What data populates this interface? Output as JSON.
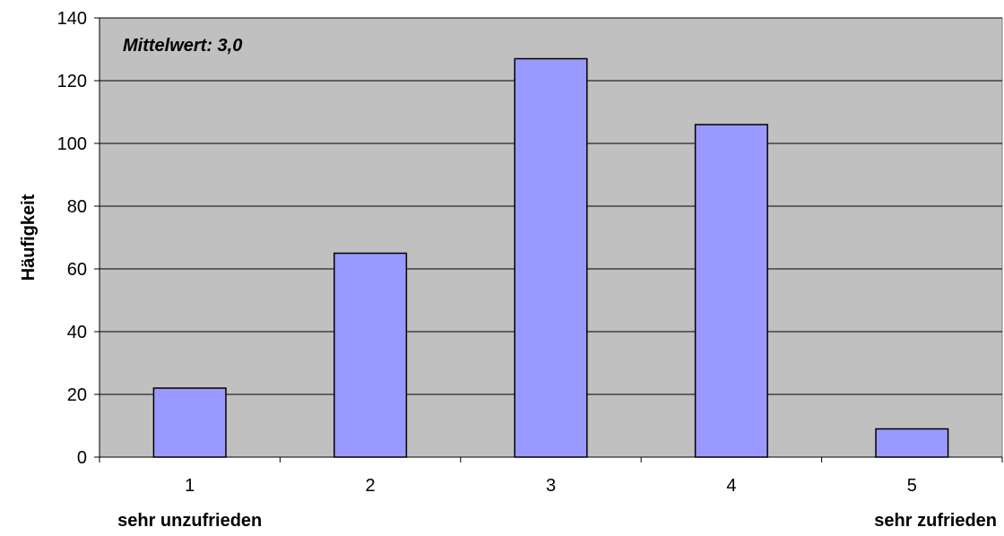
{
  "chart_data": {
    "type": "bar",
    "categories": [
      "1",
      "2",
      "3",
      "4",
      "5"
    ],
    "values": [
      22,
      65,
      127,
      106,
      9
    ],
    "title": "",
    "xlabel": "",
    "ylabel": "Häufigkeit",
    "ylim": [
      0,
      140
    ],
    "yticks": [
      0,
      20,
      40,
      60,
      80,
      100,
      120,
      140
    ],
    "grid": true,
    "legend": "none",
    "annotation": "Mittelwert: 3,0",
    "scale_left_label": "sehr unzufrieden",
    "scale_right_label": "sehr zufrieden",
    "colors": {
      "plot_background": "#c0c0c0",
      "bar_fill": "#9999ff",
      "bar_stroke": "#000000",
      "gridline": "#000000"
    }
  }
}
